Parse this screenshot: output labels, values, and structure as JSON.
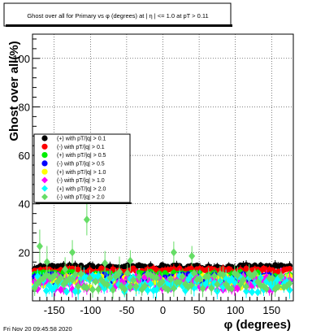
{
  "chart_data": {
    "type": "scatter",
    "title": "Ghost over all for Primary vs φ (degrees) at | η | <= 1.0 at pT > 0.11",
    "xlabel": "φ (degrees)",
    "ylabel": "Ghost over all(%)",
    "xlim": [
      -180,
      180
    ],
    "ylim": [
      0,
      110
    ],
    "xticks": [
      -150,
      -100,
      -50,
      0,
      50,
      100,
      150
    ],
    "yticks": [
      20,
      40,
      60,
      80,
      100
    ],
    "grid": true,
    "legend_position": "middle-left",
    "timestamp": "Fri Nov 20 09:45:58 2020",
    "series": [
      {
        "name": "(+) with pT/|q| > 0.1",
        "color": "#000000",
        "marker": "circle",
        "base": 14.0,
        "spread": 0.8
      },
      {
        "name": "(-) with pT/|q| > 0.1",
        "color": "#ff0000",
        "marker": "circle",
        "base": 12.5,
        "spread": 0.9
      },
      {
        "name": "(+) with pT/|q| > 0.5",
        "color": "#00ee00",
        "marker": "circle",
        "base": 10.5,
        "spread": 1.5
      },
      {
        "name": "(-) with pT/|q| > 0.5",
        "color": "#0000ff",
        "marker": "circle",
        "base": 9.0,
        "spread": 2.0
      },
      {
        "name": "(+) with pT/|q| > 1.0",
        "color": "#ffff00",
        "marker": "circle",
        "base": 8.0,
        "spread": 2.5
      },
      {
        "name": "(-) with pT/|q| > 1.0",
        "color": "#ff00ff",
        "marker": "diamond",
        "base": 7.5,
        "spread": 3.0
      },
      {
        "name": "(+) with pT/|q| > 2.0",
        "color": "#00ffff",
        "marker": "diamond",
        "base": 7.0,
        "spread": 3.5
      },
      {
        "name": "(-) with pT/|q| > 2.0",
        "color": "#66dd66",
        "marker": "diamond",
        "base": 8.0,
        "spread": 3.5,
        "outliers": [
          [
            -170,
            22.5
          ],
          [
            -105,
            33.5
          ],
          [
            -125,
            20
          ],
          [
            -80,
            15.5
          ],
          [
            -135,
            13
          ],
          [
            -160,
            16
          ],
          [
            -45,
            16.5
          ],
          [
            15,
            20
          ],
          [
            40,
            18.5
          ],
          [
            -60,
            12
          ]
        ]
      }
    ]
  }
}
